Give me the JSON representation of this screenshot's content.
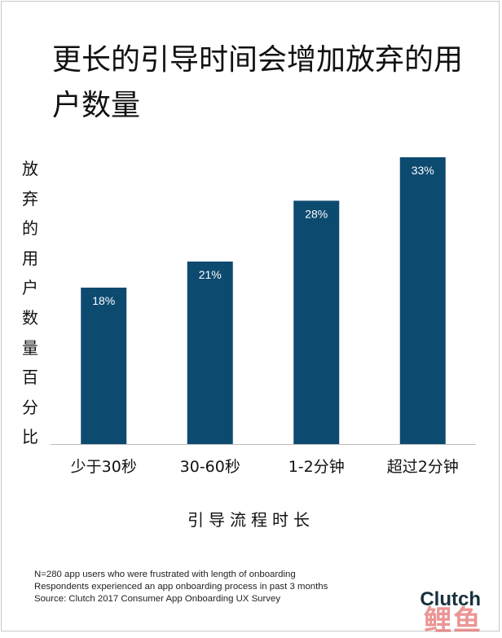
{
  "chart_data": {
    "type": "bar",
    "title": "更长的引导时间会增加放弃的用户数量",
    "xlabel": "引导流程时长",
    "ylabel": "放弃的用户数量百分比",
    "categories": [
      "少于30秒",
      "30-60秒",
      "1-2分钟",
      "超过2分钟"
    ],
    "values": [
      18,
      21,
      28,
      33
    ],
    "value_suffix": "%",
    "ylim": [
      0,
      37.5
    ],
    "grid": false,
    "legend": "none",
    "bar_color": "#0d4a70",
    "label_color": "#ffffff"
  },
  "notes": [
    "N=280 app users who were frustrated with length of onboarding",
    "Respondents experienced an app onboarding process in past 3 months",
    "Source: Clutch 2017 Consumer App Onboarding UX Survey"
  ],
  "brand": "Clutch",
  "watermark": "鲤鱼"
}
